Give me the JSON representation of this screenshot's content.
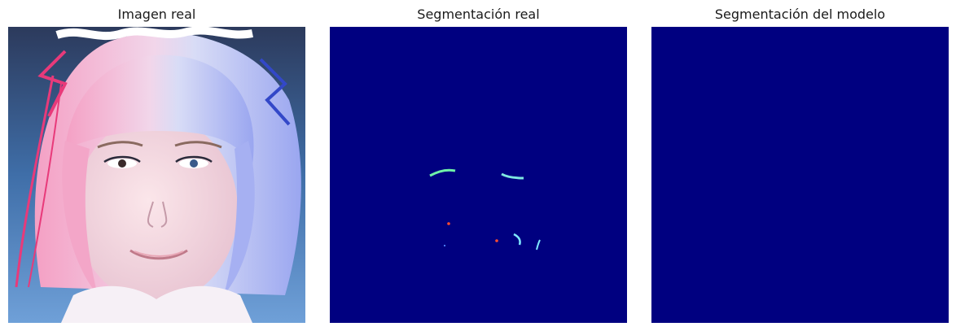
{
  "panels": [
    {
      "title": "Imagen real",
      "image": "photo-of-face"
    },
    {
      "title": "Segmentación real",
      "image": "ground-truth-segmentation-mask"
    },
    {
      "title": "Segmentación del modelo",
      "image": "predicted-segmentation-mask"
    }
  ],
  "colors": {
    "background_class": "#000080",
    "mask_eyebrow": "#6ff0a8",
    "mask_accent": "#ff4c2f",
    "mask_light": "#7fe8ff"
  }
}
